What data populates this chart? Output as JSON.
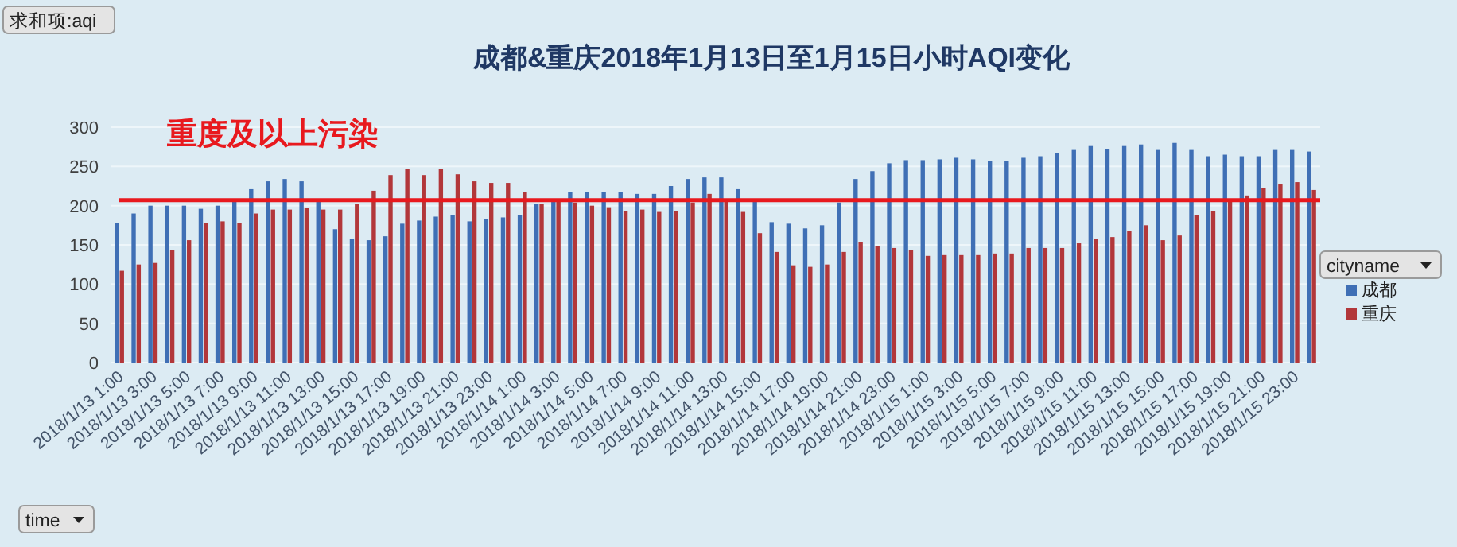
{
  "chart_data": {
    "type": "bar",
    "title": "成都&重庆2018年1月13日至1月15日小时AQI变化",
    "ylabel": "求和项:aqi",
    "xlabel": "time",
    "legend_title": "cityname",
    "legend": "right",
    "categories": [
      "2018/1/13 1:00",
      null,
      "2018/1/13 3:00",
      null,
      "2018/1/13 5:00",
      null,
      "2018/1/13 7:00",
      null,
      "2018/1/13 9:00",
      null,
      "2018/1/13 11:00",
      null,
      "2018/1/13 13:00",
      null,
      "2018/1/13 15:00",
      null,
      "2018/1/13 17:00",
      null,
      "2018/1/13 19:00",
      null,
      "2018/1/13 21:00",
      null,
      "2018/1/13 23:00",
      null,
      "2018/1/14 1:00",
      null,
      "2018/1/14 3:00",
      null,
      "2018/1/14 5:00",
      null,
      "2018/1/14 7:00",
      null,
      "2018/1/14 9:00",
      null,
      "2018/1/14 11:00",
      null,
      "2018/1/14 13:00",
      null,
      "2018/1/14 15:00",
      null,
      "2018/1/14 17:00",
      null,
      "2018/1/14 19:00",
      null,
      "2018/1/14 21:00",
      null,
      "2018/1/14 23:00",
      null,
      "2018/1/15 1:00",
      null,
      "2018/1/15 3:00",
      null,
      "2018/1/15 5:00",
      null,
      "2018/1/15 7:00",
      null,
      "2018/1/15 9:00",
      null,
      "2018/1/15 11:00",
      null,
      "2018/1/15 13:00",
      null,
      "2018/1/15 15:00",
      null,
      "2018/1/15 17:00",
      null,
      "2018/1/15 19:00",
      null,
      "2018/1/15 21:00",
      null,
      "2018/1/15 23:00",
      null
    ],
    "series": [
      {
        "name": "成都",
        "color": "#3f6fb5",
        "values": [
          178,
          190,
          200,
          200,
          200,
          196,
          200,
          206,
          221,
          231,
          234,
          231,
          208,
          170,
          158,
          156,
          161,
          177,
          181,
          186,
          188,
          180,
          183,
          185,
          188,
          202,
          205,
          217,
          217,
          217,
          217,
          215,
          215,
          225,
          234,
          236,
          236,
          221,
          205,
          179,
          177,
          171,
          175,
          204,
          234,
          244,
          254,
          258,
          258,
          259,
          261,
          259,
          257,
          257,
          261,
          263,
          267,
          271,
          276,
          272,
          276,
          278,
          271,
          280,
          271,
          263,
          265,
          263,
          263,
          271,
          271,
          269
        ]
      },
      {
        "name": "重庆",
        "color": "#b2373a",
        "values": [
          117,
          125,
          127,
          143,
          156,
          178,
          180,
          178,
          190,
          195,
          195,
          197,
          195,
          195,
          202,
          219,
          239,
          247,
          239,
          247,
          240,
          231,
          229,
          229,
          217,
          202,
          205,
          204,
          200,
          198,
          193,
          195,
          192,
          193,
          204,
          215,
          205,
          192,
          165,
          141,
          124,
          122,
          125,
          141,
          154,
          148,
          146,
          143,
          136,
          137,
          137,
          137,
          139,
          139,
          146,
          146,
          146,
          152,
          158,
          160,
          168,
          175,
          156,
          162,
          188,
          193,
          205,
          213,
          222,
          227,
          230,
          220
        ]
      }
    ],
    "ylim": [
      0,
      300
    ],
    "yticks": [
      0,
      50,
      100,
      150,
      200,
      250,
      300
    ],
    "grid": "y",
    "ref_lines": [
      {
        "axis": "y",
        "value": 207,
        "label": "重度及以上污染",
        "color": "#e8191e"
      }
    ]
  }
}
